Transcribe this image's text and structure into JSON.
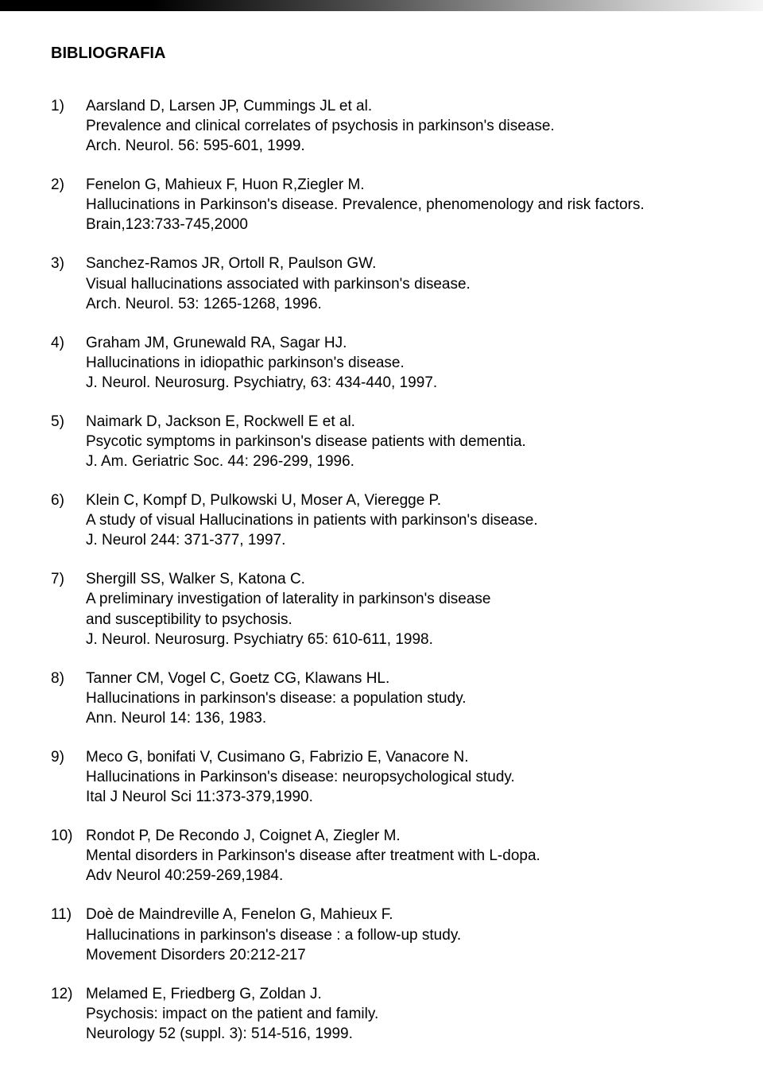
{
  "heading": "BIBLIOGRAFIA",
  "references": [
    {
      "lines": [
        "Aarsland D, Larsen JP, Cummings JL et al.",
        "Prevalence and clinical correlates of psychosis in parkinson's disease.",
        "Arch. Neurol. 56: 595-601, 1999."
      ]
    },
    {
      "lines": [
        "Fenelon G, Mahieux F, Huon R,Ziegler M.",
        "Hallucinations in Parkinson's disease. Prevalence, phenomenology and risk factors.",
        "Brain,123:733-745,2000"
      ]
    },
    {
      "lines": [
        "Sanchez-Ramos JR, Ortoll R, Paulson GW.",
        "Visual hallucinations associated with parkinson's disease.",
        "Arch. Neurol. 53: 1265-1268, 1996."
      ]
    },
    {
      "lines": [
        "Graham JM, Grunewald RA, Sagar HJ.",
        "Hallucinations in idiopathic parkinson's disease.",
        "J. Neurol. Neurosurg. Psychiatry, 63: 434-440, 1997."
      ]
    },
    {
      "lines": [
        "Naimark D, Jackson E, Rockwell E et al.",
        "Psycotic symptoms in parkinson's disease patients with dementia.",
        "J. Am. Geriatric Soc. 44: 296-299, 1996."
      ]
    },
    {
      "lines": [
        "Klein C, Kompf D, Pulkowski U, Moser A, Vieregge P.",
        "A study of visual Hallucinations in patients with parkinson's disease.",
        "J. Neurol 244: 371-377, 1997."
      ]
    },
    {
      "lines": [
        "Shergill SS, Walker S, Katona C.",
        "A preliminary investigation of laterality in parkinson's disease",
        "and susceptibility to psychosis.",
        "J. Neurol. Neurosurg. Psychiatry 65: 610-611, 1998."
      ]
    },
    {
      "lines": [
        "Tanner CM, Vogel C, Goetz CG, Klawans HL.",
        "Hallucinations in parkinson's disease: a population study.",
        "Ann. Neurol 14: 136, 1983."
      ]
    },
    {
      "lines": [
        "Meco G, bonifati V, Cusimano G, Fabrizio E, Vanacore N.",
        "Hallucinations in Parkinson's disease: neuropsychological study.",
        "Ital J Neurol Sci 11:373-379,1990."
      ]
    },
    {
      "lines": [
        "Rondot P, De Recondo J, Coignet A, Ziegler M.",
        "Mental disorders in Parkinson's disease after treatment with L-dopa.",
        "Adv Neurol 40:259-269,1984."
      ]
    },
    {
      "lines": [
        "Doè de Maindreville A, Fenelon G, Mahieux F.",
        "Hallucinations in parkinson's disease : a follow-up study.",
        "Movement Disorders 20:212-217"
      ]
    },
    {
      "lines": [
        "Melamed E, Friedberg G, Zoldan J.",
        "Psychosis: impact on the patient and family.",
        "Neurology 52 (suppl. 3): 514-516, 1999."
      ]
    }
  ]
}
